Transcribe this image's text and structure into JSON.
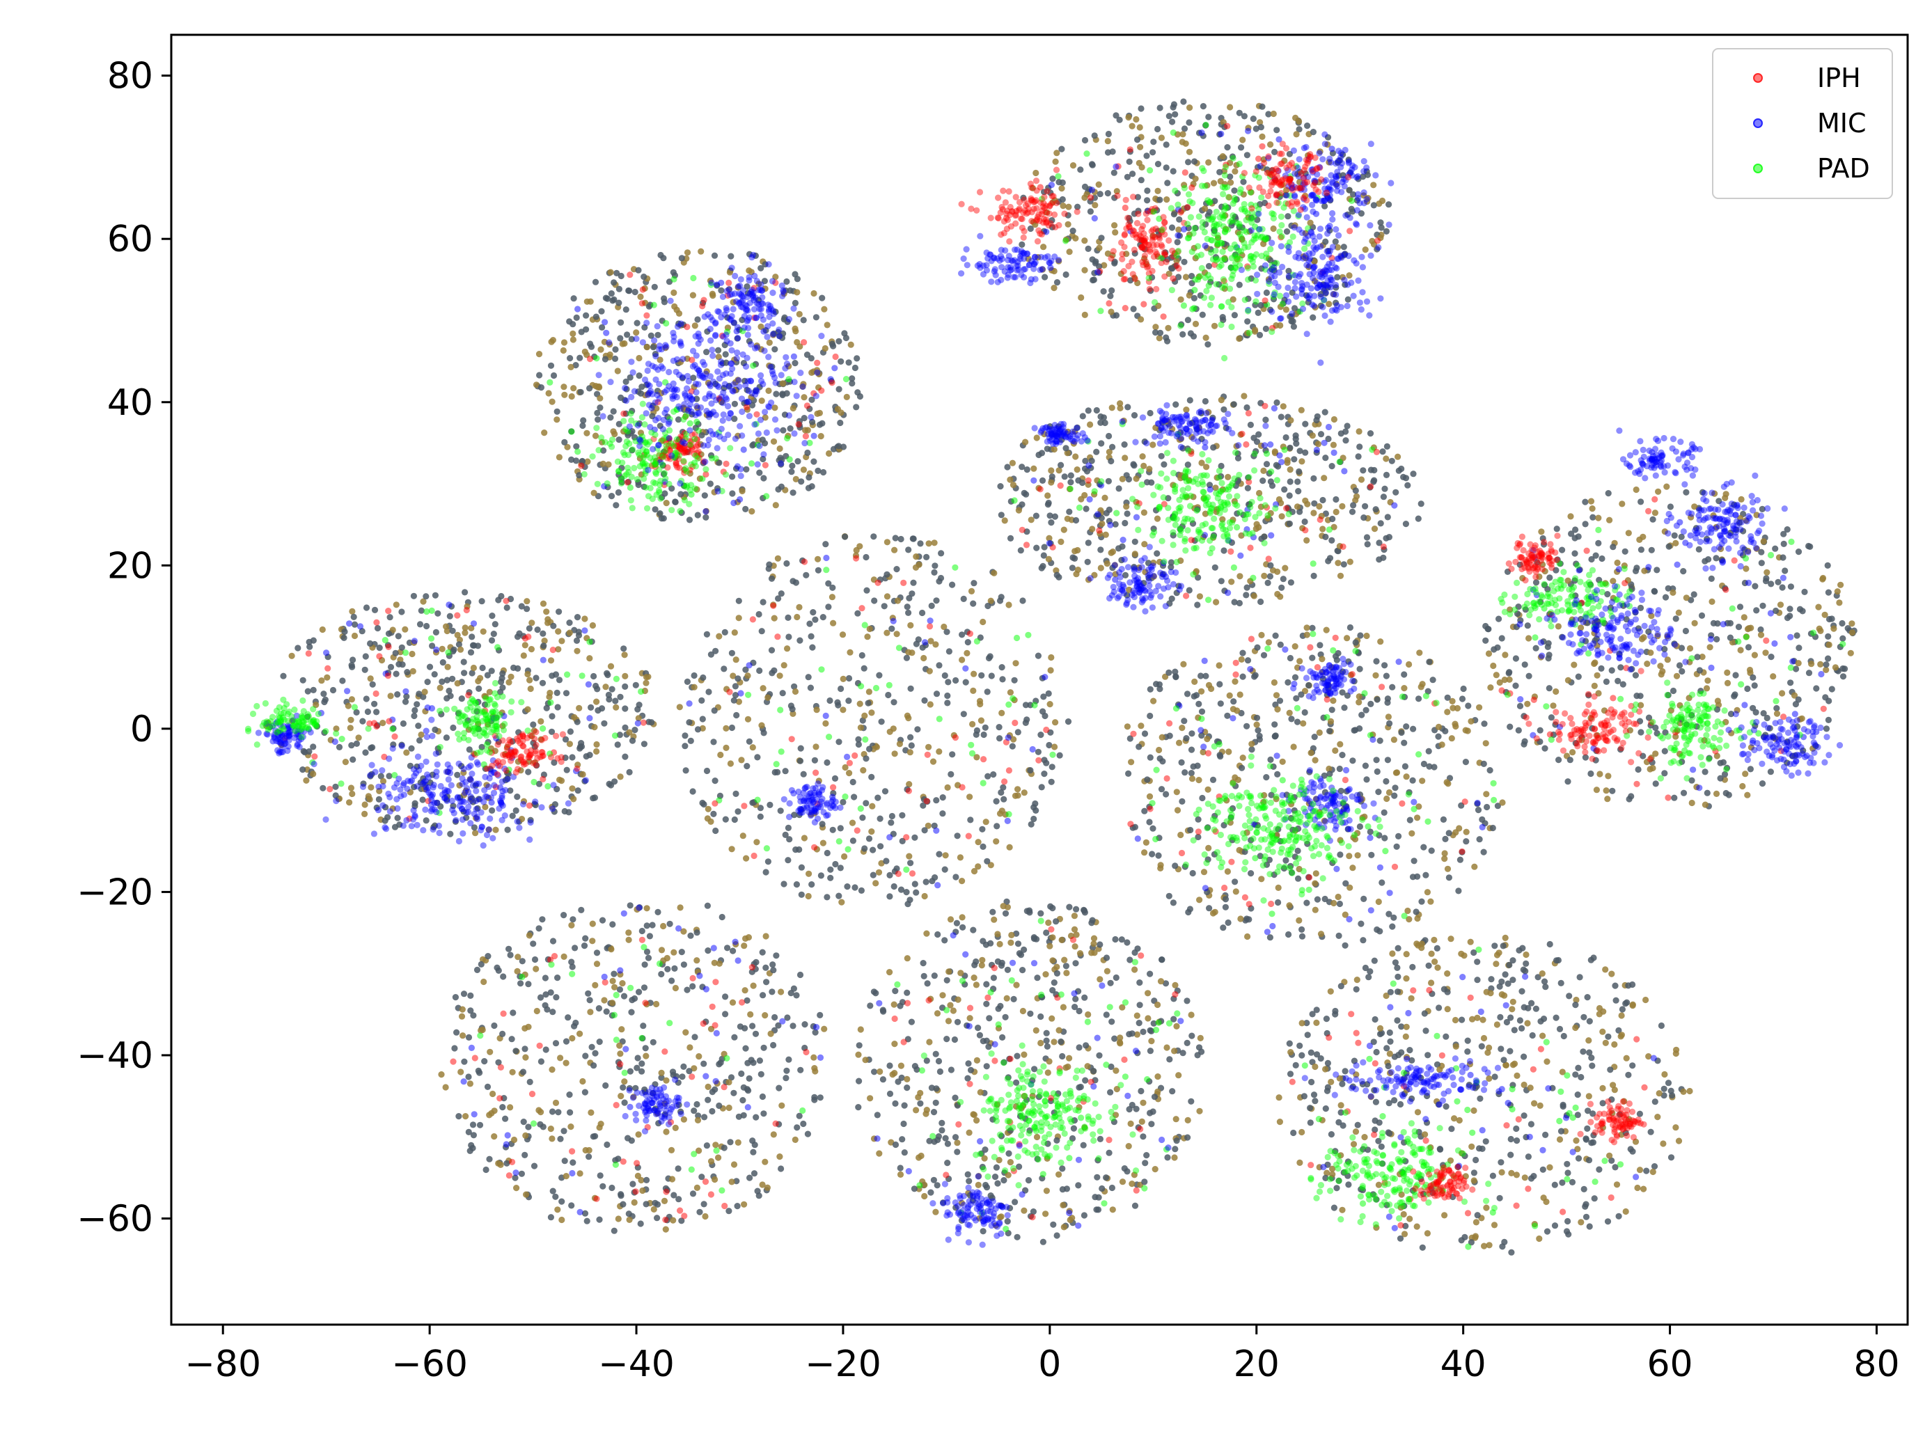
{
  "chart_data": {
    "type": "scatter",
    "title": "",
    "xlabel": "",
    "ylabel": "",
    "xlim": [
      -85,
      83
    ],
    "ylim": [
      -73,
      85
    ],
    "xticks": [
      -80,
      -60,
      -40,
      -20,
      0,
      20,
      40,
      60,
      80
    ],
    "yticks": [
      -60,
      -40,
      -20,
      0,
      20,
      40,
      60,
      80
    ],
    "xtick_labels": [
      "−80",
      "−60",
      "−40",
      "−20",
      "0",
      "20",
      "40",
      "60",
      "80"
    ],
    "ytick_labels": [
      "−60",
      "−40",
      "−20",
      "0",
      "20",
      "40",
      "60",
      "80"
    ],
    "grid": false,
    "legend_position": "top-right",
    "series": [
      {
        "name": "IPH",
        "color": "#ff0000"
      },
      {
        "name": "MIC",
        "color": "#0000ff"
      },
      {
        "name": "PAD",
        "color": "#00ff00"
      }
    ],
    "background_points_colors": [
      "#4d5a66",
      "#9a7f3a"
    ],
    "clusters": [
      {
        "center": [
          -34,
          42
        ],
        "radius": [
          16,
          17
        ]
      },
      {
        "center": [
          -57,
          2
        ],
        "radius": [
          19,
          15
        ]
      },
      {
        "center": [
          -17,
          1
        ],
        "radius": [
          19,
          23
        ]
      },
      {
        "center": [
          -40,
          -41
        ],
        "radius": [
          19,
          21
        ]
      },
      {
        "center": [
          -2,
          -42
        ],
        "radius": [
          17,
          21
        ]
      },
      {
        "center": [
          15,
          62
        ],
        "radius": [
          18,
          15
        ]
      },
      {
        "center": [
          15,
          28
        ],
        "radius": [
          21,
          13
        ]
      },
      {
        "center": [
          25,
          -7
        ],
        "radius": [
          19,
          20
        ]
      },
      {
        "center": [
          60,
          10
        ],
        "radius": [
          18,
          20
        ]
      },
      {
        "center": [
          42,
          -45
        ],
        "radius": [
          20,
          20
        ]
      }
    ],
    "dense_regions": [
      {
        "series": "MIC",
        "center": [
          -58,
          -8
        ],
        "spread": [
          8,
          5
        ]
      },
      {
        "series": "IPH",
        "center": [
          -51,
          -3
        ],
        "spread": [
          3,
          2
        ]
      },
      {
        "series": "PAD",
        "center": [
          -55,
          1
        ],
        "spread": [
          3,
          3
        ]
      },
      {
        "series": "MIC",
        "center": [
          -74,
          -1
        ],
        "spread": [
          2,
          2
        ]
      },
      {
        "series": "PAD",
        "center": [
          -73,
          1
        ],
        "spread": [
          3,
          2
        ]
      },
      {
        "series": "MIC",
        "center": [
          -29,
          52
        ],
        "spread": [
          3,
          4
        ]
      },
      {
        "series": "IPH",
        "center": [
          -36,
          34
        ],
        "spread": [
          2,
          2
        ]
      },
      {
        "series": "PAD",
        "center": [
          -38,
          33
        ],
        "spread": [
          5,
          5
        ]
      },
      {
        "series": "MIC",
        "center": [
          -33,
          42
        ],
        "spread": [
          8,
          8
        ]
      },
      {
        "series": "MIC",
        "center": [
          -4,
          57
        ],
        "spread": [
          4,
          2
        ]
      },
      {
        "series": "IPH",
        "center": [
          9,
          59
        ],
        "spread": [
          3,
          4
        ]
      },
      {
        "series": "PAD",
        "center": [
          18,
          60
        ],
        "spread": [
          6,
          8
        ]
      },
      {
        "series": "MIC",
        "center": [
          26,
          56
        ],
        "spread": [
          5,
          6
        ]
      },
      {
        "series": "MIC",
        "center": [
          27,
          67
        ],
        "spread": [
          4,
          4
        ]
      },
      {
        "series": "IPH",
        "center": [
          23,
          67
        ],
        "spread": [
          3,
          3
        ]
      },
      {
        "series": "IPH",
        "center": [
          -2,
          63
        ],
        "spread": [
          4,
          3
        ]
      },
      {
        "series": "MIC",
        "center": [
          13,
          37
        ],
        "spread": [
          4,
          2
        ]
      },
      {
        "series": "MIC",
        "center": [
          1,
          36
        ],
        "spread": [
          2,
          1
        ]
      },
      {
        "series": "MIC",
        "center": [
          9,
          18
        ],
        "spread": [
          3,
          3
        ]
      },
      {
        "series": "PAD",
        "center": [
          15,
          27
        ],
        "spread": [
          6,
          5
        ]
      },
      {
        "series": "MIC",
        "center": [
          27,
          6
        ],
        "spread": [
          2,
          2
        ]
      },
      {
        "series": "MIC",
        "center": [
          27,
          -9
        ],
        "spread": [
          3,
          3
        ]
      },
      {
        "series": "PAD",
        "center": [
          22,
          -12
        ],
        "spread": [
          7,
          6
        ]
      },
      {
        "series": "MIC",
        "center": [
          59,
          33
        ],
        "spread": [
          3,
          2
        ]
      },
      {
        "series": "MIC",
        "center": [
          65,
          25
        ],
        "spread": [
          4,
          4
        ]
      },
      {
        "series": "IPH",
        "center": [
          53,
          0
        ],
        "spread": [
          4,
          3
        ]
      },
      {
        "series": "PAD",
        "center": [
          62,
          0
        ],
        "spread": [
          4,
          4
        ]
      },
      {
        "series": "MIC",
        "center": [
          71,
          -2
        ],
        "spread": [
          4,
          3
        ]
      },
      {
        "series": "PAD",
        "center": [
          50,
          16
        ],
        "spread": [
          5,
          3
        ]
      },
      {
        "series": "IPH",
        "center": [
          47,
          21
        ],
        "spread": [
          2,
          2
        ]
      },
      {
        "series": "MIC",
        "center": [
          55,
          12
        ],
        "spread": [
          5,
          4
        ]
      },
      {
        "series": "MIC",
        "center": [
          36,
          -43
        ],
        "spread": [
          7,
          2
        ]
      },
      {
        "series": "PAD",
        "center": [
          33,
          -55
        ],
        "spread": [
          6,
          5
        ]
      },
      {
        "series": "IPH",
        "center": [
          38,
          -56
        ],
        "spread": [
          2,
          2
        ]
      },
      {
        "series": "IPH",
        "center": [
          55,
          -48
        ],
        "spread": [
          2,
          2
        ]
      },
      {
        "series": "MIC",
        "center": [
          -7,
          -59
        ],
        "spread": [
          3,
          3
        ]
      },
      {
        "series": "PAD",
        "center": [
          -1,
          -47
        ],
        "spread": [
          6,
          6
        ]
      },
      {
        "series": "MIC",
        "center": [
          -38,
          -46
        ],
        "spread": [
          2,
          2
        ]
      },
      {
        "series": "MIC",
        "center": [
          -23,
          -9
        ],
        "spread": [
          2,
          2
        ]
      }
    ]
  }
}
